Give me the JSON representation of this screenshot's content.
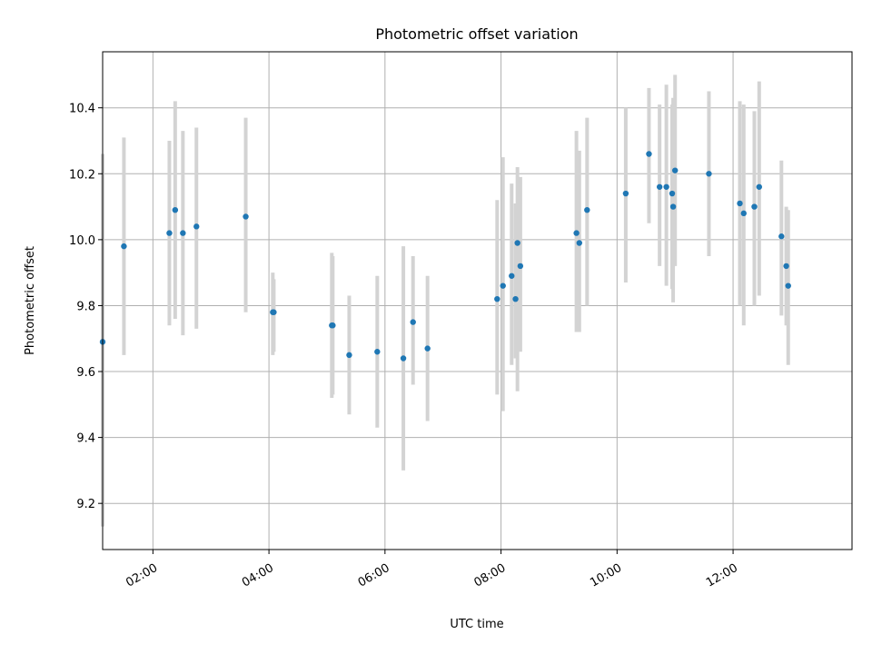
{
  "chart_data": {
    "type": "scatter",
    "title": "Photometric offset variation",
    "xlabel": "UTC time",
    "ylabel": "Photometric offset",
    "x_axis_kind": "time-of-day",
    "xlim": [
      "01:08",
      "14:03"
    ],
    "ylim": [
      9.06,
      10.57
    ],
    "x_ticks": [
      "02:00",
      "04:00",
      "06:00",
      "08:00",
      "10:00",
      "12:00"
    ],
    "y_ticks": [
      9.2,
      9.4,
      9.6,
      9.8,
      10.0,
      10.2,
      10.4
    ],
    "grid": true,
    "legend": "none",
    "point_color": "#1f77b4",
    "errorbar_color": "#d3d3d3",
    "series": [
      {
        "points": [
          {
            "x": "01:08",
            "y": 9.69,
            "lo": 9.13,
            "hi": 10.26
          },
          {
            "x": "01:30",
            "y": 9.98,
            "lo": 9.65,
            "hi": 10.31
          },
          {
            "x": "02:17",
            "y": 10.02,
            "lo": 9.74,
            "hi": 10.3
          },
          {
            "x": "02:23",
            "y": 10.09,
            "lo": 9.76,
            "hi": 10.42
          },
          {
            "x": "02:31",
            "y": 10.02,
            "lo": 9.71,
            "hi": 10.33
          },
          {
            "x": "02:45",
            "y": 10.04,
            "lo": 9.73,
            "hi": 10.34
          },
          {
            "x": "03:36",
            "y": 10.07,
            "lo": 9.78,
            "hi": 10.37
          },
          {
            "x": "04:04",
            "y": 9.78,
            "lo": 9.65,
            "hi": 9.9
          },
          {
            "x": "04:05",
            "y": 9.78,
            "lo": 9.66,
            "hi": 9.88
          },
          {
            "x": "05:05",
            "y": 9.74,
            "lo": 9.52,
            "hi": 9.96
          },
          {
            "x": "05:06",
            "y": 9.74,
            "lo": 9.53,
            "hi": 9.95
          },
          {
            "x": "05:23",
            "y": 9.65,
            "lo": 9.47,
            "hi": 9.83
          },
          {
            "x": "05:52",
            "y": 9.66,
            "lo": 9.43,
            "hi": 9.89
          },
          {
            "x": "06:19",
            "y": 9.64,
            "lo": 9.3,
            "hi": 9.98
          },
          {
            "x": "06:29",
            "y": 9.75,
            "lo": 9.56,
            "hi": 9.95
          },
          {
            "x": "06:44",
            "y": 9.67,
            "lo": 9.45,
            "hi": 9.89
          },
          {
            "x": "07:56",
            "y": 9.82,
            "lo": 9.53,
            "hi": 10.12
          },
          {
            "x": "08:02",
            "y": 9.86,
            "lo": 9.48,
            "hi": 10.25
          },
          {
            "x": "08:11",
            "y": 9.89,
            "lo": 9.62,
            "hi": 10.17
          },
          {
            "x": "08:15",
            "y": 9.82,
            "lo": 9.64,
            "hi": 10.11
          },
          {
            "x": "08:17",
            "y": 9.99,
            "lo": 9.54,
            "hi": 10.22
          },
          {
            "x": "08:20",
            "y": 9.92,
            "lo": 9.66,
            "hi": 10.19
          },
          {
            "x": "09:18",
            "y": 10.02,
            "lo": 9.72,
            "hi": 10.33
          },
          {
            "x": "09:21",
            "y": 9.99,
            "lo": 9.72,
            "hi": 10.27
          },
          {
            "x": "09:29",
            "y": 10.09,
            "lo": 9.8,
            "hi": 10.37
          },
          {
            "x": "10:09",
            "y": 10.14,
            "lo": 9.87,
            "hi": 10.4
          },
          {
            "x": "10:33",
            "y": 10.26,
            "lo": 10.05,
            "hi": 10.46
          },
          {
            "x": "10:44",
            "y": 10.16,
            "lo": 9.92,
            "hi": 10.41
          },
          {
            "x": "10:51",
            "y": 10.16,
            "lo": 9.86,
            "hi": 10.47
          },
          {
            "x": "10:57",
            "y": 10.14,
            "lo": 9.85,
            "hi": 10.41
          },
          {
            "x": "10:58",
            "y": 10.1,
            "lo": 9.81,
            "hi": 10.43
          },
          {
            "x": "11:00",
            "y": 10.21,
            "lo": 9.92,
            "hi": 10.5
          },
          {
            "x": "11:35",
            "y": 10.2,
            "lo": 9.95,
            "hi": 10.45
          },
          {
            "x": "12:07",
            "y": 10.11,
            "lo": 9.8,
            "hi": 10.42
          },
          {
            "x": "12:11",
            "y": 10.08,
            "lo": 9.74,
            "hi": 10.41
          },
          {
            "x": "12:22",
            "y": 10.1,
            "lo": 9.8,
            "hi": 10.39
          },
          {
            "x": "12:27",
            "y": 10.16,
            "lo": 9.83,
            "hi": 10.48
          },
          {
            "x": "12:50",
            "y": 10.01,
            "lo": 9.77,
            "hi": 10.24
          },
          {
            "x": "12:55",
            "y": 9.92,
            "lo": 9.74,
            "hi": 10.1
          },
          {
            "x": "12:57",
            "y": 9.86,
            "lo": 9.62,
            "hi": 10.09
          }
        ]
      }
    ]
  }
}
